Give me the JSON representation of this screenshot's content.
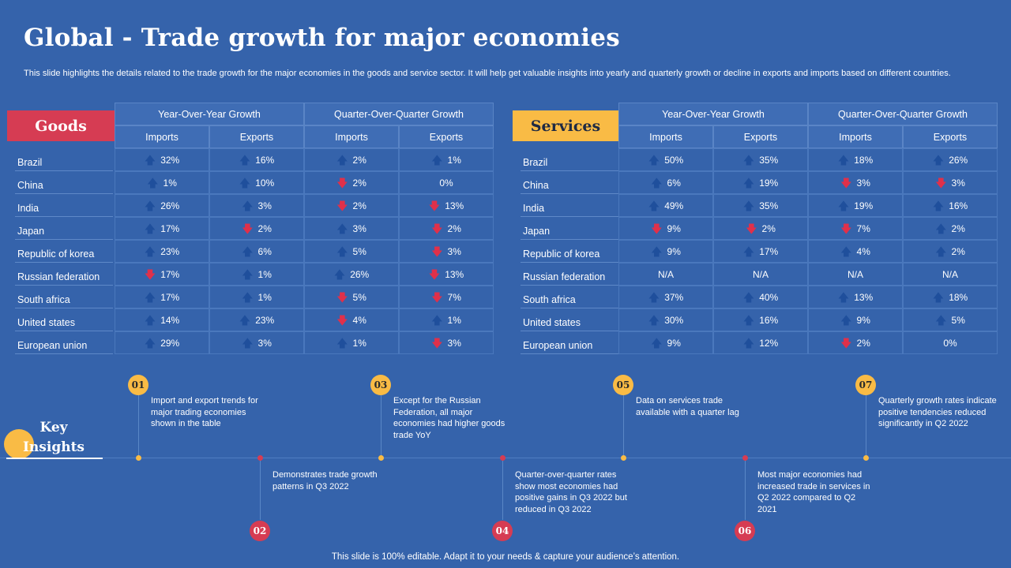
{
  "title": "Global - Trade growth for major economies",
  "subtitle": "This slide highlights the details related to the trade growth for the major economies in the goods and service sector. It will help get valuable insights into yearly and quarterly growth or decline in exports and imports based on different countries.",
  "headers": {
    "yoy": "Year-Over-Year  Growth",
    "qoq": "Quarter-Over-Quarter  Growth",
    "imports": "Imports",
    "exports": "Exports"
  },
  "countries": [
    "Brazil",
    "China",
    "India",
    "Japan",
    "Republic of korea",
    "Russian federation",
    "South africa",
    "United states",
    "European union"
  ],
  "goods": {
    "label": "Goods",
    "rows": [
      [
        {
          "v": "32%",
          "d": "up"
        },
        {
          "v": "16%",
          "d": "up"
        },
        {
          "v": "2%",
          "d": "up"
        },
        {
          "v": "1%",
          "d": "up"
        }
      ],
      [
        {
          "v": "1%",
          "d": "up"
        },
        {
          "v": "10%",
          "d": "up"
        },
        {
          "v": "2%",
          "d": "down"
        },
        {
          "v": "0%",
          "d": "none"
        }
      ],
      [
        {
          "v": "26%",
          "d": "up"
        },
        {
          "v": "3%",
          "d": "up"
        },
        {
          "v": "2%",
          "d": "down"
        },
        {
          "v": "13%",
          "d": "down"
        }
      ],
      [
        {
          "v": "17%",
          "d": "up"
        },
        {
          "v": "2%",
          "d": "down"
        },
        {
          "v": "3%",
          "d": "up"
        },
        {
          "v": "2%",
          "d": "down"
        }
      ],
      [
        {
          "v": "23%",
          "d": "up"
        },
        {
          "v": "6%",
          "d": "up"
        },
        {
          "v": "5%",
          "d": "up"
        },
        {
          "v": "3%",
          "d": "down"
        }
      ],
      [
        {
          "v": "17%",
          "d": "down"
        },
        {
          "v": "1%",
          "d": "up"
        },
        {
          "v": "26%",
          "d": "up"
        },
        {
          "v": "13%",
          "d": "down"
        }
      ],
      [
        {
          "v": "17%",
          "d": "up"
        },
        {
          "v": "1%",
          "d": "up"
        },
        {
          "v": "5%",
          "d": "down"
        },
        {
          "v": "7%",
          "d": "down"
        }
      ],
      [
        {
          "v": "14%",
          "d": "up"
        },
        {
          "v": "23%",
          "d": "up"
        },
        {
          "v": "4%",
          "d": "down"
        },
        {
          "v": "1%",
          "d": "up"
        }
      ],
      [
        {
          "v": "29%",
          "d": "up"
        },
        {
          "v": "3%",
          "d": "up"
        },
        {
          "v": "1%",
          "d": "up"
        },
        {
          "v": "3%",
          "d": "down"
        }
      ]
    ]
  },
  "services": {
    "label": "Services",
    "rows": [
      [
        {
          "v": "50%",
          "d": "up"
        },
        {
          "v": "35%",
          "d": "up"
        },
        {
          "v": "18%",
          "d": "up"
        },
        {
          "v": "26%",
          "d": "up"
        }
      ],
      [
        {
          "v": "6%",
          "d": "up"
        },
        {
          "v": "19%",
          "d": "up"
        },
        {
          "v": "3%",
          "d": "down"
        },
        {
          "v": "3%",
          "d": "down"
        }
      ],
      [
        {
          "v": "49%",
          "d": "up"
        },
        {
          "v": "35%",
          "d": "up"
        },
        {
          "v": "19%",
          "d": "up"
        },
        {
          "v": "16%",
          "d": "up"
        }
      ],
      [
        {
          "v": "9%",
          "d": "down"
        },
        {
          "v": "2%",
          "d": "down"
        },
        {
          "v": "7%",
          "d": "down"
        },
        {
          "v": "2%",
          "d": "up"
        }
      ],
      [
        {
          "v": "9%",
          "d": "up"
        },
        {
          "v": "17%",
          "d": "up"
        },
        {
          "v": "4%",
          "d": "up"
        },
        {
          "v": "2%",
          "d": "up"
        }
      ],
      [
        {
          "v": "N/A",
          "d": "none"
        },
        {
          "v": "N/A",
          "d": "none"
        },
        {
          "v": "N/A",
          "d": "none"
        },
        {
          "v": "N/A",
          "d": "none"
        }
      ],
      [
        {
          "v": "37%",
          "d": "up"
        },
        {
          "v": "40%",
          "d": "up"
        },
        {
          "v": "13%",
          "d": "up"
        },
        {
          "v": "18%",
          "d": "up"
        }
      ],
      [
        {
          "v": "30%",
          "d": "up"
        },
        {
          "v": "16%",
          "d": "up"
        },
        {
          "v": "9%",
          "d": "up"
        },
        {
          "v": "5%",
          "d": "up"
        }
      ],
      [
        {
          "v": "9%",
          "d": "up"
        },
        {
          "v": "12%",
          "d": "up"
        },
        {
          "v": "2%",
          "d": "down"
        },
        {
          "v": "0%",
          "d": "none"
        }
      ]
    ]
  },
  "arrows": {
    "up": "🡅",
    "down": "🡇",
    "none": ""
  },
  "key_insights": {
    "label": "Key Insights",
    "items": [
      {
        "num": "01",
        "text": "Import and export trends for major trading economies shown in the table"
      },
      {
        "num": "02",
        "text": "Demonstrates trade growth patterns in Q3 2022"
      },
      {
        "num": "03",
        "text": "Except for the Russian Federation, all major economies had higher goods trade YoY"
      },
      {
        "num": "04",
        "text": "Quarter-over-quarter rates show most economies had positive gains in Q3 2022 but reduced in Q3 2022"
      },
      {
        "num": "05",
        "text": "Data on services trade available with a quarter lag"
      },
      {
        "num": "06",
        "text": "Most major economies had increased trade in services in Q2 2022 compared to Q2 2021"
      },
      {
        "num": "07",
        "text": "Quarterly growth rates indicate positive tendencies reduced significantly in Q2 2022"
      }
    ]
  },
  "footer": "This slide is 100% editable. Adapt it to your needs & capture your audience’s attention.",
  "colors": {
    "background": "#3563ab",
    "goods": "#d63c53",
    "services": "#f9bb45",
    "arrow_up": "#1f4f9c",
    "arrow_down": "#e0304a"
  }
}
